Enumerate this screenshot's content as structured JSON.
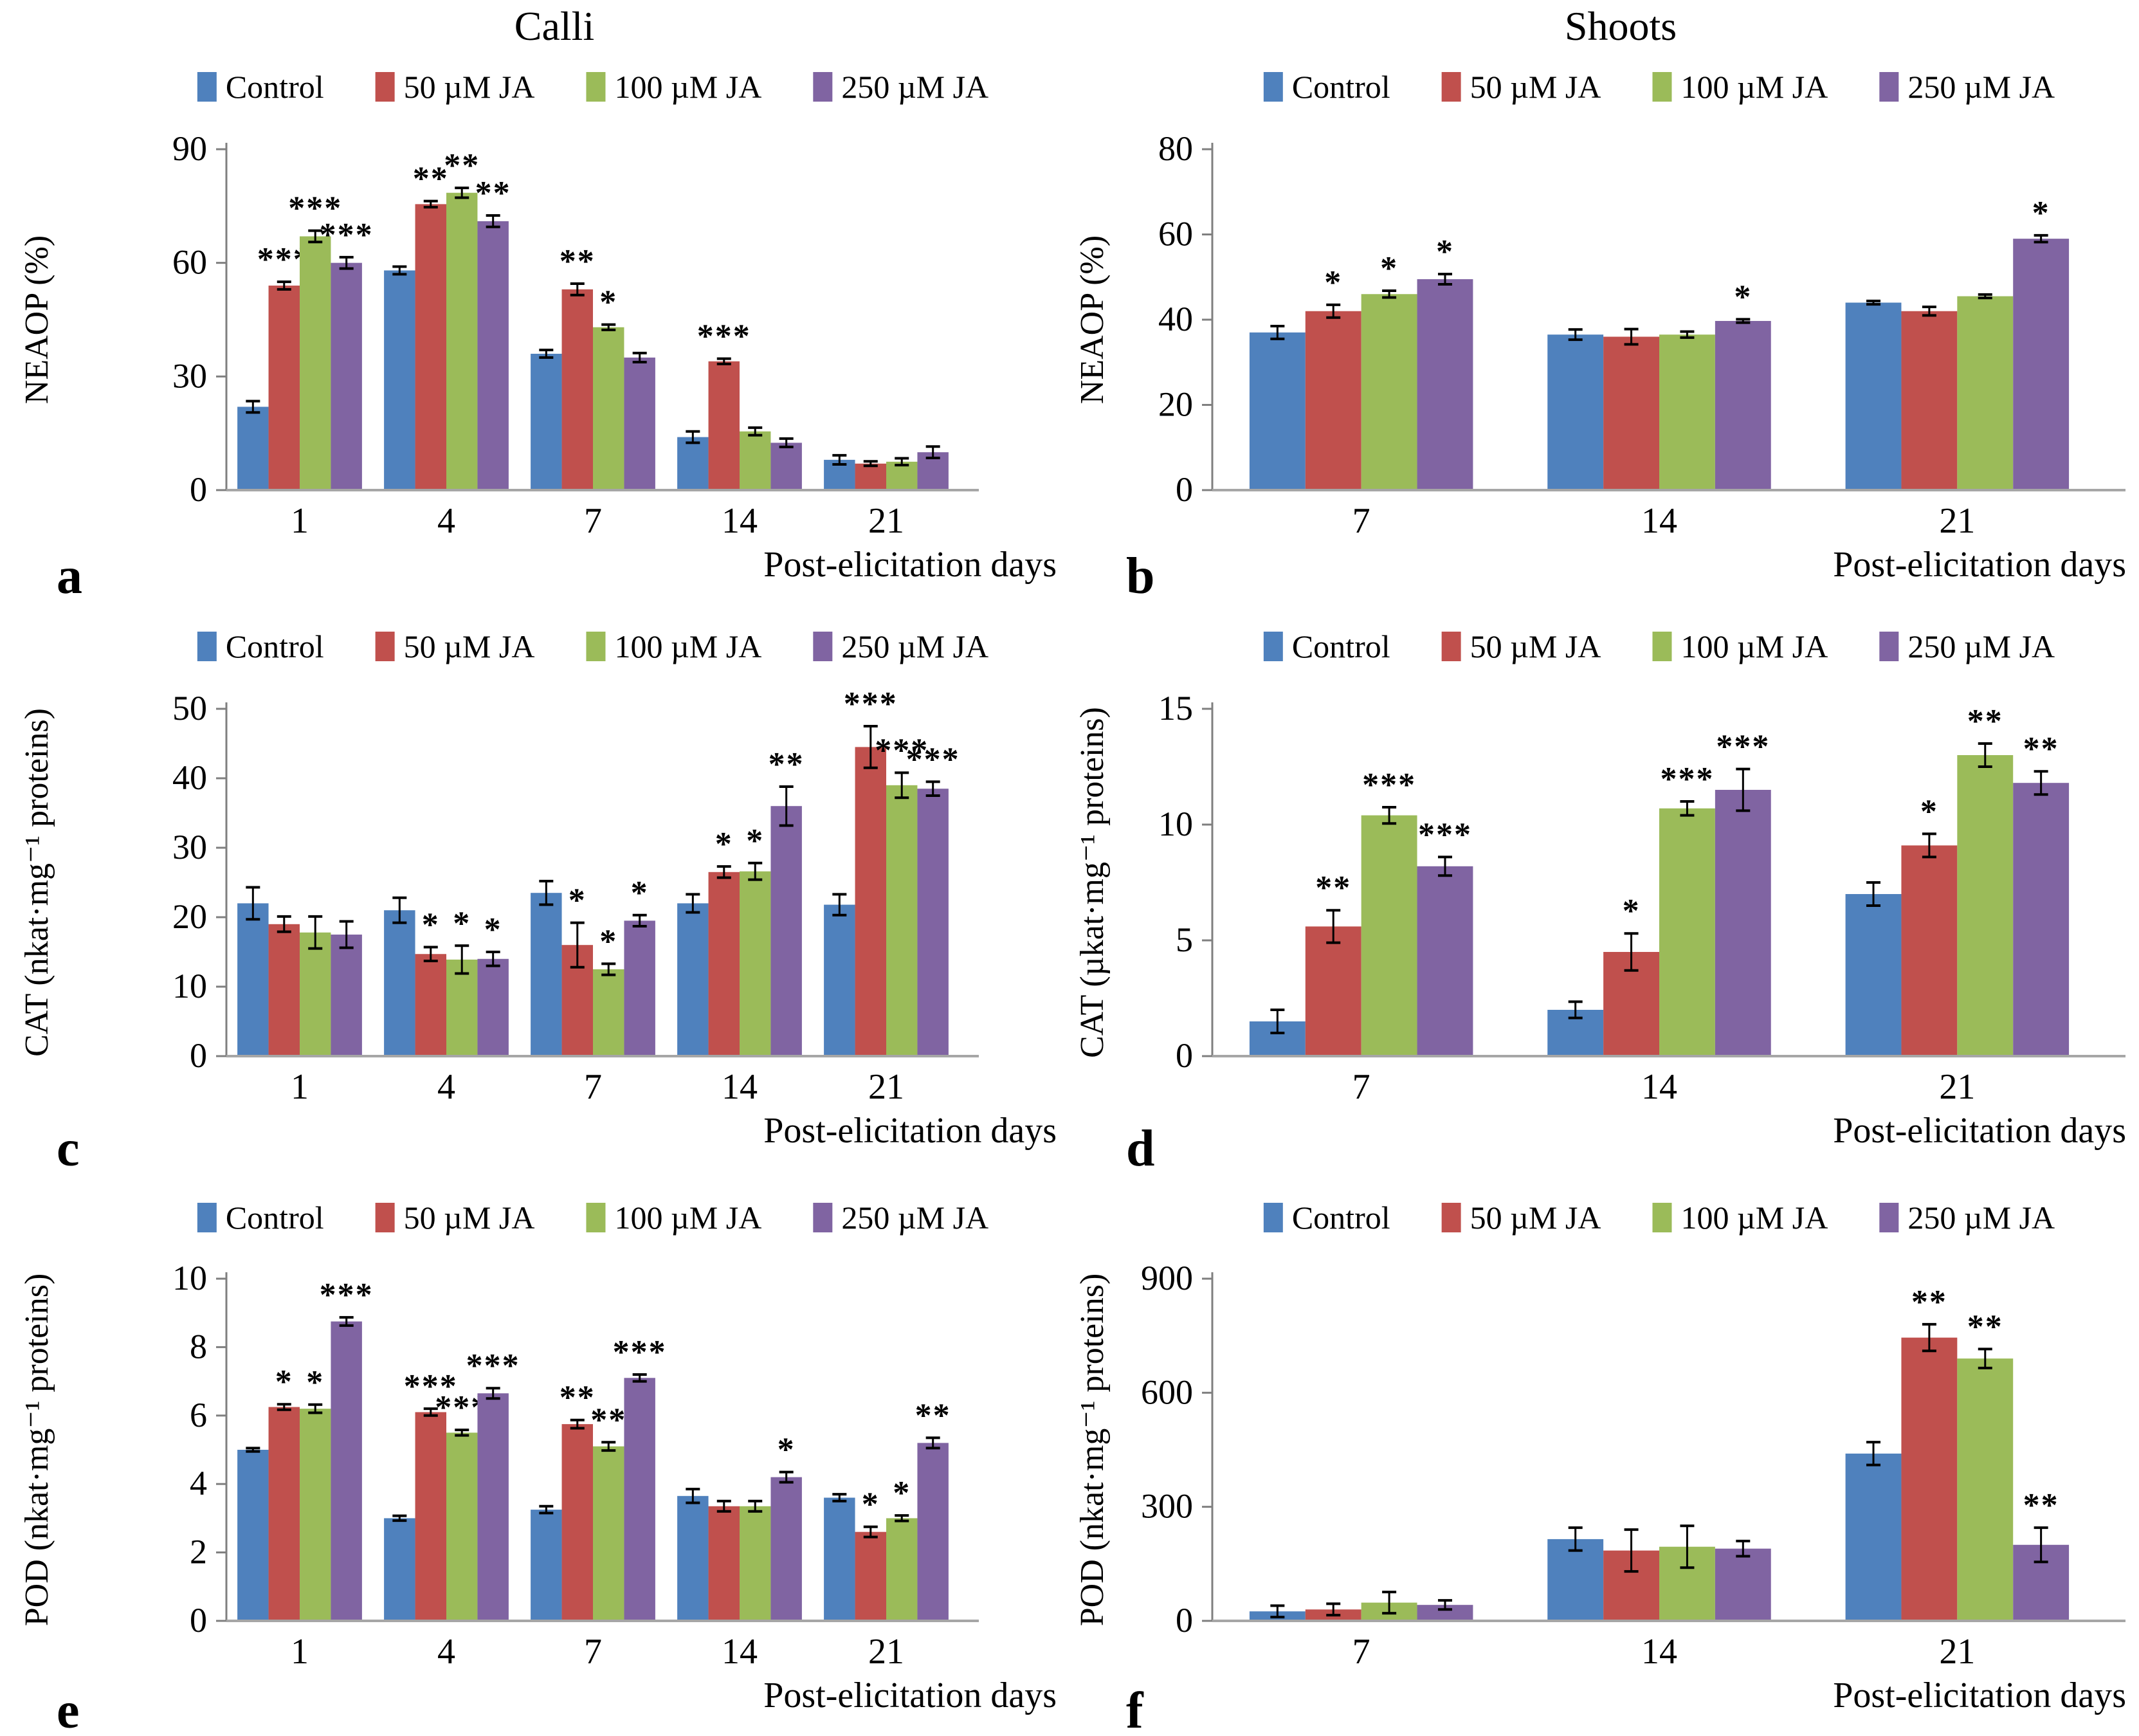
{
  "figure": {
    "column_titles": [
      "Calli",
      "Shoots"
    ],
    "x_axis_label": "Post-elicitation days",
    "legend": [
      {
        "label": "Control",
        "color": "#4f81bd"
      },
      {
        "label": "50 µM JA",
        "color": "#c0504d"
      },
      {
        "label": "100 µM JA",
        "color": "#9bbb59"
      },
      {
        "label": "250 µM JA",
        "color": "#8064a2"
      }
    ],
    "error_bar_color": "#000000",
    "axis_color_vertical": "#7f7f7f",
    "axis_color_horizontal": "#a6a6a6"
  },
  "chart_data": [
    {
      "panel": "a",
      "type": "bar",
      "title": "Calli",
      "ylabel": "NEAOP (%)",
      "xlabel": "Post-elicitation days",
      "categories": [
        "1",
        "4",
        "7",
        "14",
        "21"
      ],
      "ylim": [
        0,
        90
      ],
      "yticks": [
        0,
        30,
        60,
        90
      ],
      "grid": false,
      "legend_position": "top-center",
      "series": [
        {
          "name": "Control",
          "values": [
            22,
            58,
            36,
            14,
            8
          ],
          "errors": [
            1.5,
            1,
            1,
            1.5,
            1.2
          ],
          "sig": [
            "",
            "",
            "",
            "",
            ""
          ]
        },
        {
          "name": "50 µM JA",
          "values": [
            54,
            75.5,
            53,
            34,
            7
          ],
          "errors": [
            1,
            0.8,
            1.5,
            0.7,
            0.6
          ],
          "sig": [
            "***",
            "**",
            "**",
            "***",
            ""
          ]
        },
        {
          "name": "100 µM JA",
          "values": [
            67,
            78.5,
            43,
            15.5,
            7.5
          ],
          "errors": [
            1.5,
            1.3,
            0.7,
            1,
            0.9
          ],
          "sig": [
            "***",
            "**",
            "*",
            "",
            ""
          ]
        },
        {
          "name": "250 µM JA",
          "values": [
            60,
            71,
            35,
            12.5,
            10
          ],
          "errors": [
            1.5,
            1.5,
            1.2,
            1.1,
            1.5
          ],
          "sig": [
            "***",
            "**",
            "",
            "",
            ""
          ]
        }
      ]
    },
    {
      "panel": "b",
      "type": "bar",
      "title": "Shoots",
      "ylabel": "NEAOP (%)",
      "xlabel": "Post-elicitation days",
      "categories": [
        "7",
        "14",
        "21"
      ],
      "ylim": [
        0,
        80
      ],
      "yticks": [
        0,
        20,
        40,
        60,
        80
      ],
      "grid": false,
      "legend_position": "top-center",
      "series": [
        {
          "name": "Control",
          "values": [
            37,
            36.5,
            44
          ],
          "errors": [
            1.5,
            1.2,
            0.4
          ],
          "sig": [
            "",
            "",
            ""
          ]
        },
        {
          "name": "50 µM JA",
          "values": [
            42,
            36,
            42
          ],
          "errors": [
            1.5,
            1.8,
            1
          ],
          "sig": [
            "*",
            "",
            ""
          ]
        },
        {
          "name": "100 µM JA",
          "values": [
            46,
            36.5,
            45.5
          ],
          "errors": [
            0.8,
            0.7,
            0.4
          ],
          "sig": [
            "*",
            "",
            ""
          ]
        },
        {
          "name": "250 µM JA",
          "values": [
            49.5,
            39.7,
            59
          ],
          "errors": [
            1.2,
            0.4,
            0.8
          ],
          "sig": [
            "*",
            "*",
            "*"
          ]
        }
      ]
    },
    {
      "panel": "c",
      "type": "bar",
      "title": null,
      "ylabel": "CAT (nkat·mg⁻¹ proteins)",
      "xlabel": "Post-elicitation days",
      "categories": [
        "1",
        "4",
        "7",
        "14",
        "21"
      ],
      "ylim": [
        0,
        50
      ],
      "yticks": [
        0,
        10,
        20,
        30,
        40,
        50
      ],
      "grid": false,
      "legend_position": "top-center",
      "series": [
        {
          "name": "Control",
          "values": [
            22,
            21,
            23.5,
            22,
            21.8
          ],
          "errors": [
            2.3,
            1.8,
            1.7,
            1.3,
            1.5
          ],
          "sig": [
            "",
            "",
            "",
            "",
            ""
          ]
        },
        {
          "name": "50 µM JA",
          "values": [
            19,
            14.7,
            16,
            26.5,
            44.5
          ],
          "errors": [
            1.1,
            1,
            3.2,
            0.8,
            3
          ],
          "sig": [
            "",
            "*",
            "*",
            "*",
            "***"
          ]
        },
        {
          "name": "100 µM JA",
          "values": [
            17.8,
            13.9,
            12.5,
            26.6,
            39
          ],
          "errors": [
            2.3,
            2,
            0.8,
            1.2,
            1.8
          ],
          "sig": [
            "",
            "*",
            "*",
            "*",
            "***"
          ]
        },
        {
          "name": "250 µM JA",
          "values": [
            17.5,
            14,
            19.5,
            36,
            38.5
          ],
          "errors": [
            1.9,
            1,
            0.8,
            2.8,
            1
          ],
          "sig": [
            "",
            "*",
            "*",
            "**",
            "***"
          ]
        }
      ]
    },
    {
      "panel": "d",
      "type": "bar",
      "title": null,
      "ylabel": "CAT (µkat·mg⁻¹ proteins)",
      "xlabel": "Post-elicitation days",
      "categories": [
        "7",
        "14",
        "21"
      ],
      "ylim": [
        0,
        15
      ],
      "yticks": [
        0,
        5,
        10,
        15
      ],
      "grid": false,
      "legend_position": "top-center",
      "series": [
        {
          "name": "Control",
          "values": [
            1.5,
            2.0,
            7.0
          ],
          "errors": [
            0.5,
            0.35,
            0.5
          ],
          "sig": [
            "",
            "",
            ""
          ]
        },
        {
          "name": "50 µM JA",
          "values": [
            5.6,
            4.5,
            9.1
          ],
          "errors": [
            0.7,
            0.8,
            0.5
          ],
          "sig": [
            "**",
            "*",
            "*"
          ]
        },
        {
          "name": "100 µM JA",
          "values": [
            10.4,
            10.7,
            13.0
          ],
          "errors": [
            0.35,
            0.3,
            0.5
          ],
          "sig": [
            "***",
            "***",
            "**"
          ]
        },
        {
          "name": "250 µM JA",
          "values": [
            8.2,
            11.5,
            11.8
          ],
          "errors": [
            0.4,
            0.9,
            0.5
          ],
          "sig": [
            "***",
            "***",
            "**"
          ]
        }
      ]
    },
    {
      "panel": "e",
      "type": "bar",
      "title": null,
      "ylabel": "POD (nkat·mg⁻¹ proteins)",
      "xlabel": "Post-elicitation days",
      "categories": [
        "1",
        "4",
        "7",
        "14",
        "21"
      ],
      "ylim": [
        0,
        10
      ],
      "yticks": [
        0,
        2,
        4,
        6,
        8,
        10
      ],
      "grid": false,
      "legend_position": "top-center",
      "series": [
        {
          "name": "Control",
          "values": [
            5.0,
            3.0,
            3.25,
            3.65,
            3.6
          ],
          "errors": [
            0.05,
            0.07,
            0.1,
            0.2,
            0.1
          ],
          "sig": [
            "",
            "",
            "",
            "",
            ""
          ]
        },
        {
          "name": "50 µM JA",
          "values": [
            6.25,
            6.1,
            5.75,
            3.35,
            2.6
          ],
          "errors": [
            0.08,
            0.1,
            0.12,
            0.15,
            0.15
          ],
          "sig": [
            "*",
            "***",
            "**",
            "",
            "*"
          ]
        },
        {
          "name": "100 µM JA",
          "values": [
            6.2,
            5.5,
            5.1,
            3.35,
            3.0
          ],
          "errors": [
            0.12,
            0.08,
            0.12,
            0.15,
            0.08
          ],
          "sig": [
            "*",
            "***",
            "**",
            "",
            "*"
          ]
        },
        {
          "name": "250 µM JA",
          "values": [
            8.75,
            6.65,
            7.1,
            4.2,
            5.2
          ],
          "errors": [
            0.12,
            0.15,
            0.1,
            0.15,
            0.15
          ],
          "sig": [
            "***",
            "***",
            "***",
            "*",
            "**"
          ]
        }
      ]
    },
    {
      "panel": "f",
      "type": "bar",
      "title": null,
      "ylabel": "POD (nkat·mg⁻¹ proteins)",
      "xlabel": "Post-elicitation days",
      "categories": [
        "7",
        "14",
        "21"
      ],
      "ylim": [
        0,
        900
      ],
      "yticks": [
        0,
        300,
        600,
        900
      ],
      "grid": false,
      "legend_position": "top-center",
      "series": [
        {
          "name": "Control",
          "values": [
            25,
            215,
            440
          ],
          "errors": [
            15,
            30,
            30
          ],
          "sig": [
            "",
            "",
            ""
          ]
        },
        {
          "name": "50 µM JA",
          "values": [
            30,
            185,
            745
          ],
          "errors": [
            15,
            55,
            35
          ],
          "sig": [
            "",
            "",
            "**"
          ]
        },
        {
          "name": "100 µM JA",
          "values": [
            48,
            195,
            690
          ],
          "errors": [
            28,
            55,
            25
          ],
          "sig": [
            "",
            "",
            "**"
          ]
        },
        {
          "name": "250 µM JA",
          "values": [
            42,
            190,
            200
          ],
          "errors": [
            12,
            20,
            45
          ],
          "sig": [
            "",
            "",
            "**"
          ]
        }
      ]
    }
  ]
}
